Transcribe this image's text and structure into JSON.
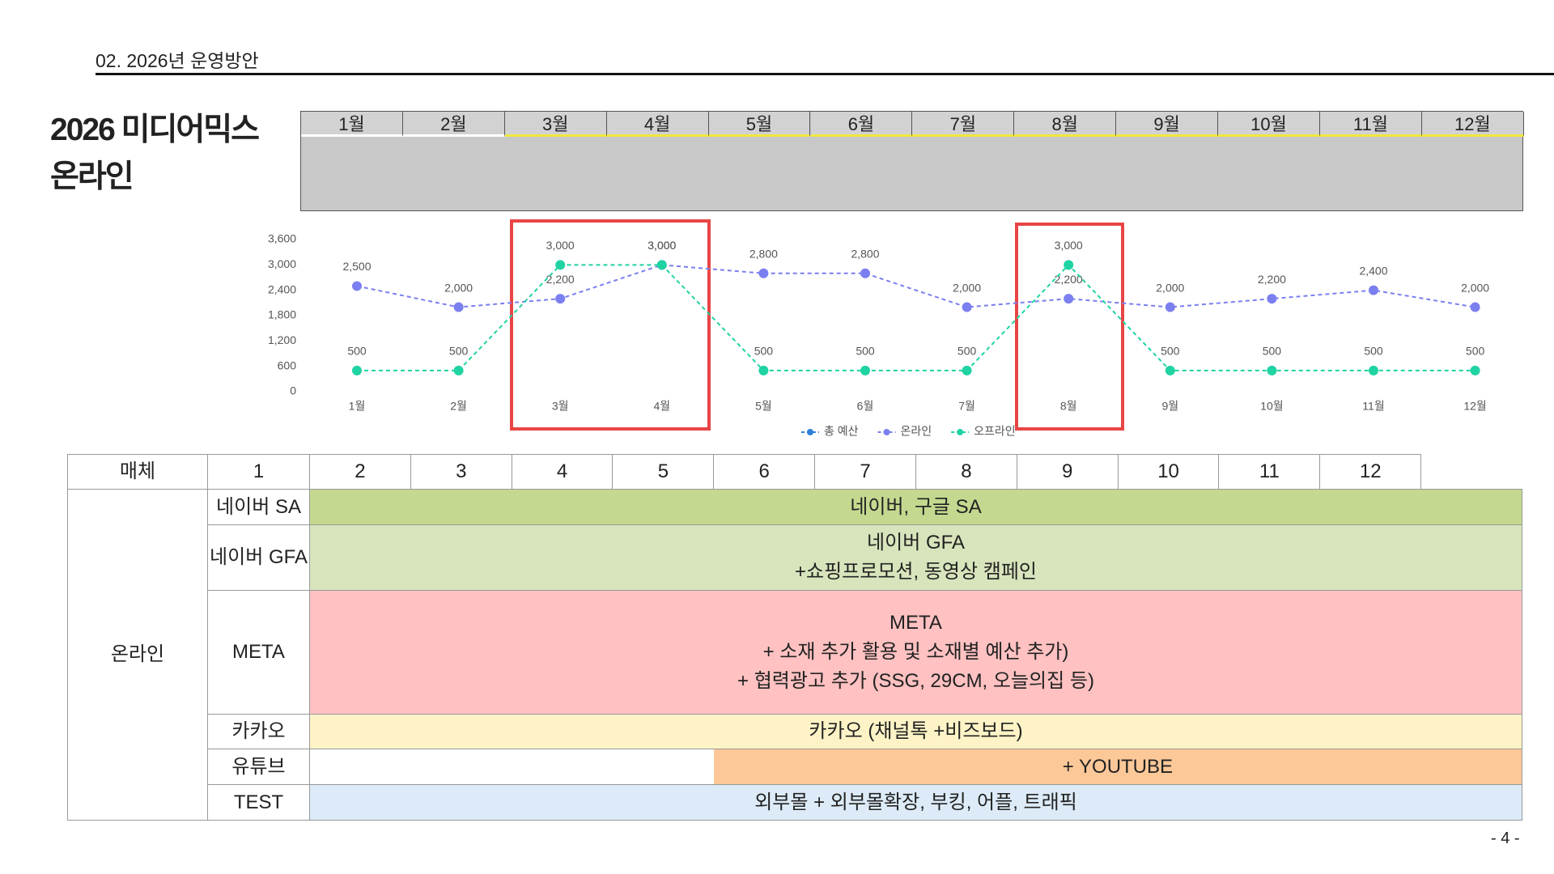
{
  "header": {
    "section": "02. 2026년 운영방안"
  },
  "title": {
    "lines": [
      "2026 미디어믹스",
      "온라인"
    ]
  },
  "months": [
    "1월",
    "2월",
    "3월",
    "4월",
    "5월",
    "6월",
    "7월",
    "8월",
    "9월",
    "10월",
    "11월",
    "12월"
  ],
  "chart_data": {
    "type": "line",
    "categories": [
      "1월",
      "2월",
      "3월",
      "4월",
      "5월",
      "6월",
      "7월",
      "8월",
      "9월",
      "10월",
      "11월",
      "12월"
    ],
    "series": [
      {
        "name": "총 예산",
        "color": "#2f7fd6",
        "values": [
          null,
          null,
          null,
          null,
          null,
          null,
          null,
          null,
          null,
          null,
          null,
          null
        ]
      },
      {
        "name": "온라인",
        "color": "#7b7ff0",
        "values": [
          2500,
          2000,
          2200,
          3000,
          2800,
          2800,
          2000,
          2200,
          2000,
          2200,
          2400,
          2000
        ],
        "value_labels": [
          "2,500",
          "2,000",
          "2,200",
          "3,000",
          "2,800",
          "2,800",
          "2,000",
          "2,200",
          "2,000",
          "2,200",
          "2,400",
          "2,000"
        ]
      },
      {
        "name": "오프라인",
        "color": "#1fd3a3",
        "values": [
          500,
          500,
          3000,
          3000,
          500,
          500,
          500,
          3000,
          500,
          500,
          500,
          500
        ],
        "value_labels": [
          "500",
          "500",
          "3,000",
          "3,000",
          "500",
          "500",
          "500",
          "3,000",
          "500",
          "500",
          "500",
          "500"
        ]
      }
    ],
    "ylim": [
      0,
      3600
    ],
    "yticks": [
      0,
      600,
      {
        "value": 1200,
        "label": "1,200"
      },
      {
        "value": 1800,
        "label": "1,800"
      },
      {
        "value": 2400,
        "label": "2,400"
      },
      {
        "value": 3000,
        "label": "3,000"
      },
      {
        "value": 3600,
        "label": "3,600"
      }
    ],
    "grid": false,
    "legend": "bottom"
  },
  "table": {
    "header": [
      "매체",
      1,
      2,
      3,
      4,
      5,
      6,
      7,
      8,
      9,
      10,
      11,
      12
    ],
    "group": "온라인",
    "rows": [
      {
        "media": "네이버 SA",
        "lines": [
          "네이버, 구글 SA"
        ]
      },
      {
        "media": "네이버 GFA",
        "lines": [
          "네이버 GFA",
          "+쇼핑프로모션, 동영상 캠페인"
        ]
      },
      {
        "media": "META",
        "lines": [
          "META",
          "+ 소재 추가 활용 및 소재별 예산 추가)",
          "+ 협력광고 추가 (SSG, 29CM, 오늘의집 등)"
        ]
      },
      {
        "media": "카카오",
        "lines": [
          "카카오 (채널톡 +비즈보드)"
        ]
      },
      {
        "media": "유튜브",
        "lines": [
          "+ YOUTUBE"
        ]
      },
      {
        "media": "TEST",
        "lines": [
          "외부몰 + 외부몰확장, 부킹, 어플, 트래픽"
        ]
      }
    ]
  },
  "page_number": "- 4 -"
}
